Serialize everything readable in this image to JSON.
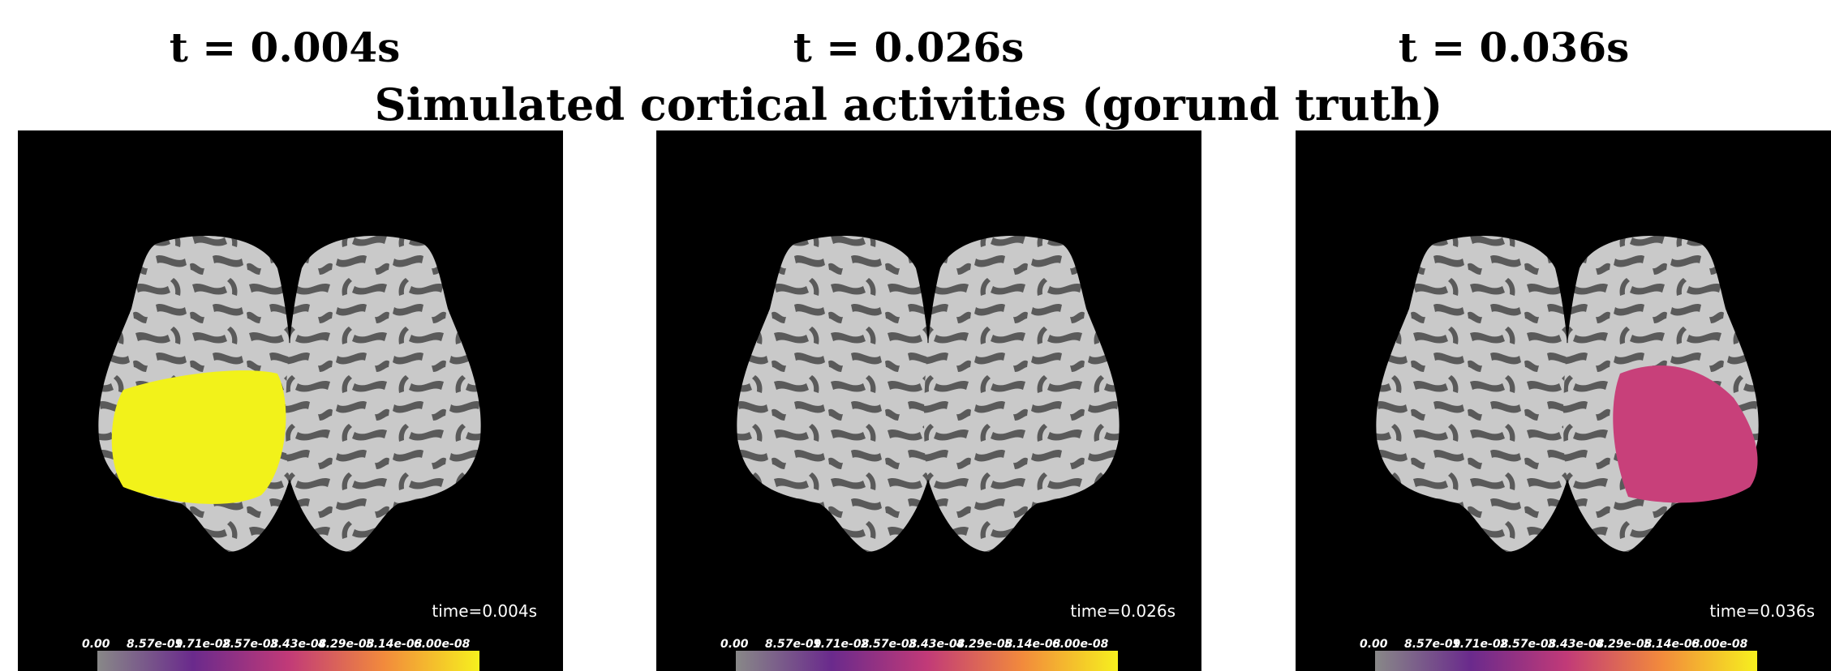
{
  "title": "Simulated cortical activities (gorund truth)",
  "panels": [
    {
      "title": "t = 0.004s",
      "time_label": "time=0.004s"
    },
    {
      "title": "t = 0.026s",
      "time_label": "time=0.026s"
    },
    {
      "title": "t = 0.036s",
      "time_label": "time=0.036s"
    }
  ],
  "colorbar_labels": [
    "0.00",
    "8.57e-09",
    "1.71e-08",
    "2.57e-08",
    "3.43e-08",
    "4.29e-08",
    "5.14e-08",
    "6.00e-08"
  ]
}
